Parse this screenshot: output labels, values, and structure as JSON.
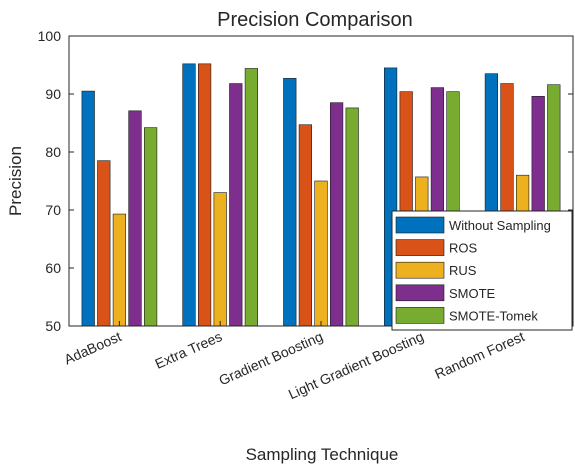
{
  "chart_data": {
    "type": "bar",
    "title": "Precision Comparison",
    "xlabel": "Sampling Technique",
    "ylabel": "Precision",
    "ylim": [
      50,
      100
    ],
    "yticks": [
      50,
      60,
      70,
      80,
      90,
      100
    ],
    "categories": [
      "AdaBoost",
      "Extra Trees",
      "Gradient Boosting",
      "Light Gradient Boosting",
      "Random Forest"
    ],
    "series": [
      {
        "name": "Without Sampling",
        "color": "#0072BD",
        "values": [
          90.5,
          95.2,
          92.7,
          94.5,
          93.5
        ]
      },
      {
        "name": "ROS",
        "color": "#D95319",
        "values": [
          78.5,
          95.2,
          84.7,
          90.4,
          91.8
        ]
      },
      {
        "name": "RUS",
        "color": "#EDB120",
        "values": [
          69.3,
          73.0,
          75.0,
          75.7,
          76.0
        ]
      },
      {
        "name": "SMOTE",
        "color": "#7E2F8E",
        "values": [
          87.1,
          91.8,
          88.5,
          91.1,
          89.6
        ]
      },
      {
        "name": "SMOTE-Tomek",
        "color": "#77AC30",
        "values": [
          84.2,
          94.4,
          87.6,
          90.4,
          91.6
        ]
      }
    ],
    "grid": false,
    "legend_position": "bottom-right"
  }
}
